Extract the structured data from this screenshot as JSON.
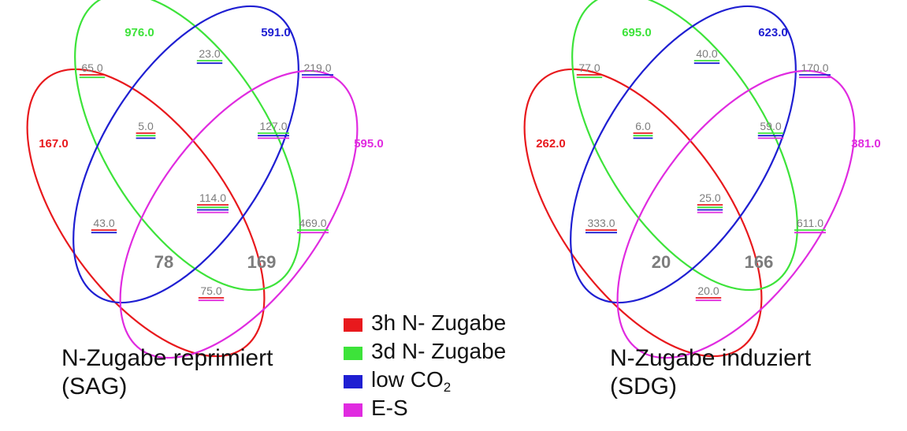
{
  "colors": {
    "h3": "#e8191d",
    "d3": "#3de33a",
    "lowco2": "#1f1fd2",
    "es": "#e02be0",
    "value_text": "#7d7d7d"
  },
  "legend": [
    {
      "label": "3h N- Zugabe",
      "sub": "",
      "color": "#e8191d"
    },
    {
      "label": "3d N- Zugabe",
      "sub": "",
      "color": "#3de33a"
    },
    {
      "label": "low CO",
      "sub": "2",
      "color": "#1f1fd2"
    },
    {
      "label": "E-S",
      "sub": "",
      "color": "#e02be0"
    }
  ],
  "diagrams": [
    {
      "caption_line1": "N-Zugabe reprimiert",
      "caption_line2": "(SAG)",
      "labels": {
        "only_h3": "167.0",
        "only_d3": "976.0",
        "only_lowco2": "591.0",
        "only_es": "595.0",
        "h3_d3": "65.0",
        "d3_lowco2": "23.0",
        "lowco2_es": "219.0",
        "h3_d3_lowco2": "5.0",
        "d3_lowco2_es": "127.0",
        "all": "114.0",
        "h3_lowco2": "43.0",
        "d3_es": "469.0",
        "h3_lowco2_es": "78",
        "h3_d3_es": "169",
        "h3_es": "75.0"
      }
    },
    {
      "caption_line1": "N-Zugabe induziert",
      "caption_line2": "(SDG)",
      "labels": {
        "only_h3": "262.0",
        "only_d3": "695.0",
        "only_lowco2": "623.0",
        "only_es": "381.0",
        "h3_d3": "77.0",
        "d3_lowco2": "40.0",
        "lowco2_es": "170.0",
        "h3_d3_lowco2": "6.0",
        "d3_lowco2_es": "59.0",
        "all": "25.0",
        "h3_lowco2": "333.0",
        "d3_es": "611.0",
        "h3_lowco2_es": "20",
        "h3_d3_es": "166",
        "h3_es": "20.0"
      }
    }
  ]
}
